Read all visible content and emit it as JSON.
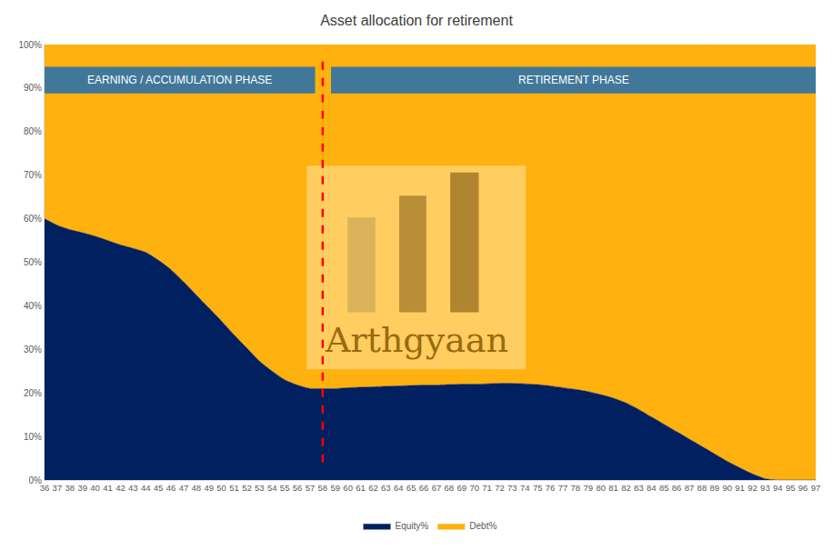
{
  "chart_data": {
    "type": "area",
    "title": "Asset allocation for retirement",
    "stacked": true,
    "legend": "bottom",
    "grid": false,
    "x": [
      36,
      37,
      38,
      39,
      40,
      41,
      42,
      43,
      44,
      45,
      46,
      47,
      48,
      49,
      50,
      51,
      52,
      53,
      54,
      55,
      56,
      57,
      58,
      59,
      60,
      61,
      62,
      63,
      64,
      65,
      66,
      67,
      68,
      69,
      70,
      71,
      72,
      73,
      74,
      75,
      76,
      77,
      78,
      79,
      80,
      81,
      82,
      83,
      84,
      85,
      86,
      87,
      88,
      89,
      90,
      91,
      92,
      93,
      94,
      95,
      96,
      97
    ],
    "xlim": [
      36,
      97
    ],
    "xticks": [
      36,
      37,
      38,
      39,
      40,
      41,
      42,
      43,
      44,
      45,
      46,
      47,
      48,
      49,
      50,
      51,
      52,
      53,
      54,
      55,
      56,
      57,
      58,
      59,
      60,
      61,
      62,
      63,
      64,
      65,
      66,
      67,
      68,
      69,
      70,
      71,
      72,
      73,
      74,
      75,
      76,
      77,
      78,
      79,
      80,
      81,
      82,
      83,
      84,
      85,
      86,
      87,
      88,
      89,
      90,
      91,
      92,
      93,
      94,
      95,
      96,
      97
    ],
    "ylim": [
      0,
      100
    ],
    "yticks": [
      {
        "value": 0,
        "label": "0%"
      },
      {
        "value": 10,
        "label": "10%"
      },
      {
        "value": 20,
        "label": "20%"
      },
      {
        "value": 30,
        "label": "30%"
      },
      {
        "value": 40,
        "label": "40%"
      },
      {
        "value": 50,
        "label": "50%"
      },
      {
        "value": 60,
        "label": "60%"
      },
      {
        "value": 70,
        "label": "70%"
      },
      {
        "value": 80,
        "label": "80%"
      },
      {
        "value": 90,
        "label": "90%"
      },
      {
        "value": 100,
        "label": "100%"
      }
    ],
    "series": [
      {
        "name": "Equity%",
        "color": "#002060",
        "values": [
          60,
          58.5,
          57.5,
          56.8,
          56,
          55,
          54,
          53.2,
          52.3,
          50.5,
          48.3,
          45.5,
          42.5,
          39.5,
          36.5,
          33.3,
          30.3,
          27.3,
          25,
          23,
          21.8,
          21,
          21,
          21,
          21.2,
          21.3,
          21.4,
          21.5,
          21.6,
          21.7,
          21.8,
          21.8,
          21.9,
          22,
          22,
          22.1,
          22.2,
          22.2,
          22.1,
          21.9,
          21.6,
          21.2,
          20.8,
          20.3,
          19.6,
          18.8,
          17.7,
          16.2,
          14.5,
          12.8,
          11.1,
          9.4,
          7.7,
          6,
          4.3,
          2.8,
          1.4,
          0.3,
          0,
          0,
          0,
          0
        ]
      },
      {
        "name": "Debt%",
        "color": "#FFB10F",
        "values": [
          40,
          41.5,
          42.5,
          43.2,
          44,
          45,
          46,
          46.8,
          47.7,
          49.5,
          51.7,
          54.5,
          57.5,
          60.5,
          63.5,
          66.7,
          69.7,
          72.7,
          75,
          77,
          78.2,
          79,
          79,
          79,
          78.8,
          78.7,
          78.6,
          78.5,
          78.4,
          78.3,
          78.2,
          78.2,
          78.1,
          78,
          78,
          77.9,
          77.8,
          77.8,
          77.9,
          78.1,
          78.4,
          78.8,
          79.2,
          79.7,
          80.4,
          81.2,
          82.3,
          83.8,
          85.5,
          87.2,
          88.9,
          90.6,
          92.3,
          94,
          95.7,
          97.2,
          98.6,
          99.7,
          100,
          100,
          100,
          100
        ]
      }
    ],
    "phases": [
      {
        "label": "EARNING / ACCUMULATION PHASE",
        "start": 36,
        "end": 58
      },
      {
        "label": "RETIREMENT PHASE",
        "start": 58,
        "end": 97
      }
    ],
    "divider": 58,
    "watermark": "Arthgyaan"
  }
}
